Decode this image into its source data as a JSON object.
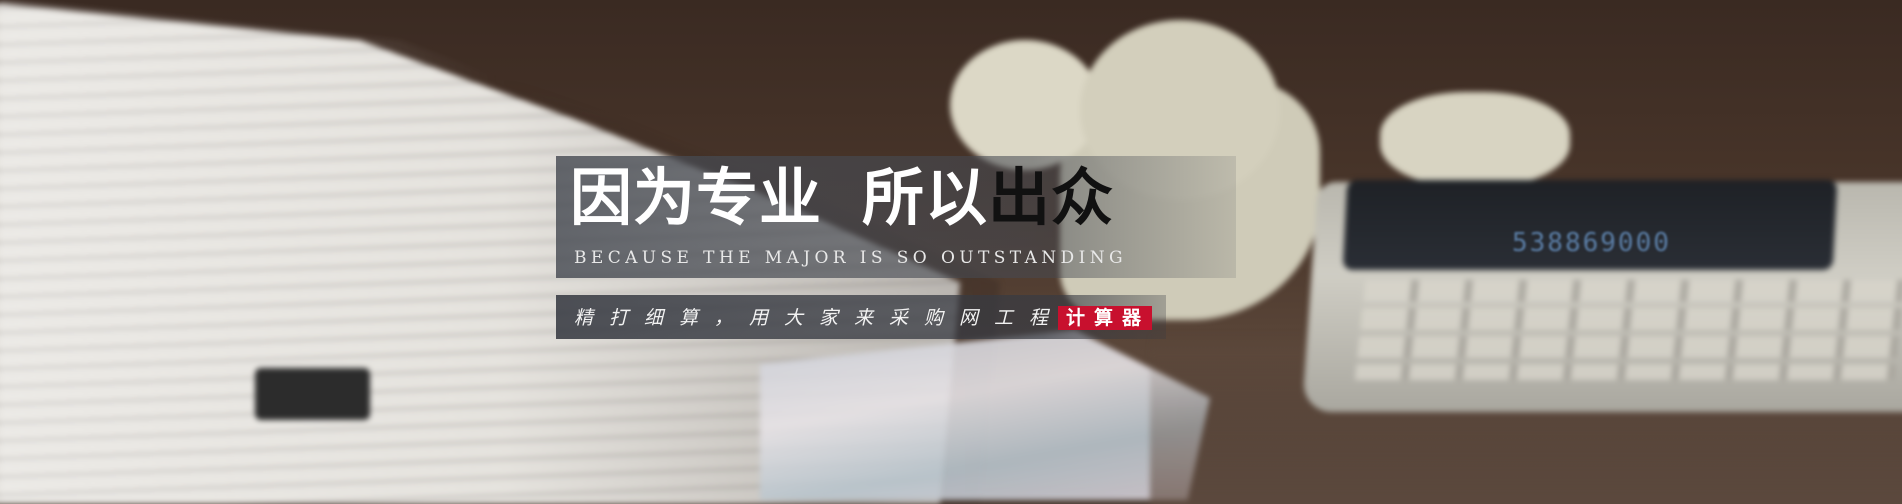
{
  "banner": {
    "headline": {
      "part1": "因为专业",
      "part2_light": "所以",
      "part2_dark": "出众"
    },
    "subtitle": "BECAUSE THE MAJOR IS SO OUTSTANDING",
    "tagline": {
      "text": "精打细算，用大家来采购网工程",
      "highlight": "计算器"
    },
    "calculator_display": "538869000"
  },
  "colors": {
    "highlight": "#c8102e",
    "headline_dark": "#111111",
    "panel": "#464a52"
  },
  "icons": [
    "paper-stack-image",
    "calculator-image"
  ]
}
